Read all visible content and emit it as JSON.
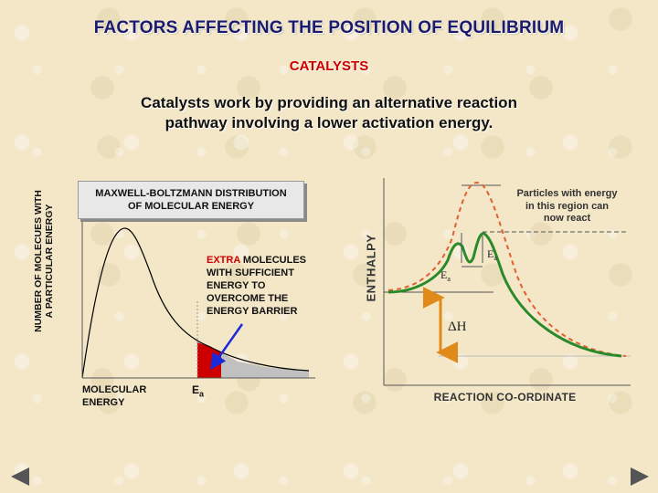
{
  "slide": {
    "title": "FACTORS AFFECTING THE POSITION OF EQUILIBRIUM",
    "subtitle": "CATALYSTS",
    "description": "Catalysts work by providing an alternative reaction pathway involving a lower activation energy."
  },
  "left_diagram": {
    "y_axis_line1": "NUMBER OF MOLECUES WITH",
    "y_axis_line2": "A PARTICULAR ENERGY",
    "box_line1": "MAXWELL-BOLTZMANN DISTRIBUTION",
    "box_line2": "OF MOLECULAR ENERGY",
    "extra_red": "EXTRA",
    "extra_rest": " MOLECULES WITH SUFFICIENT ENERGY TO OVERCOME THE ENERGY BARRIER",
    "x_axis_line1": "MOLECULAR",
    "x_axis_line2": "ENERGY",
    "ea_main": "E",
    "ea_sub": "a",
    "colors": {
      "curve": "#000000",
      "extra_fill": "#cc0000",
      "shade_fill": "#c0c0c0",
      "arrow": "#1a2ad8"
    }
  },
  "right_diagram": {
    "y_axis": "ENTHALPY",
    "x_axis": "REACTION CO-ORDINATE",
    "particles_line1": "Particles with energy",
    "particles_line2": "in this region can",
    "particles_line3": "now react",
    "ea_small_main": "E",
    "ea_small_sub": "a",
    "ea_large_main": "E",
    "ea_large_sub": "a",
    "delta_h": "ΔH",
    "colors": {
      "uncatalysed": "#e06030",
      "catalysed": "#2a8a2a",
      "arrow": "#e08a1a",
      "axes": "#555555"
    }
  },
  "nav": {
    "prev": "previous-arrow-icon",
    "next": "next-arrow-icon"
  }
}
